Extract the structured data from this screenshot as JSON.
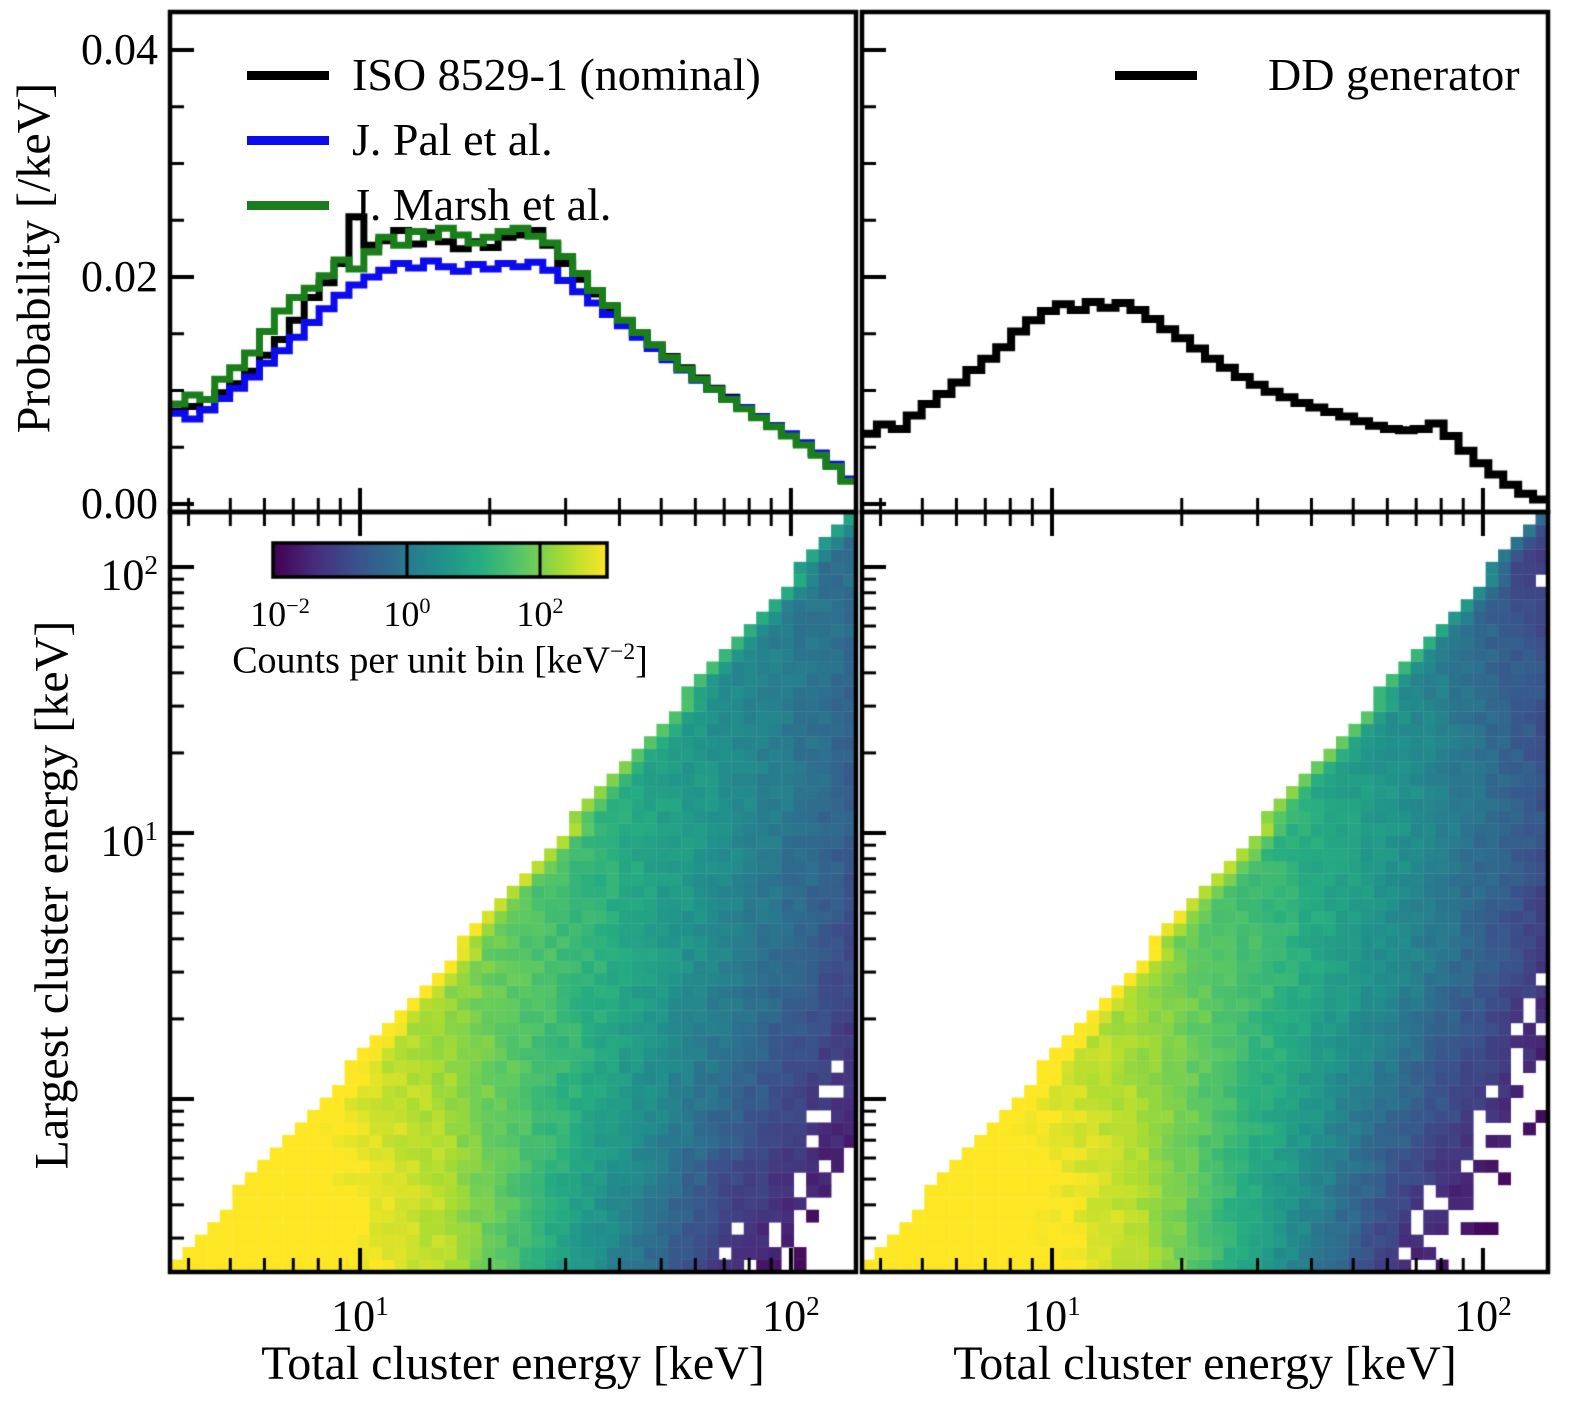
{
  "labels": {
    "prob_axis": "Probability [/keV]",
    "prob_ticks": [
      "0.00",
      "0.02",
      "0.04"
    ],
    "largest_axis": "Largest cluster energy [keV]",
    "total_axis": "Total cluster energy [keV]",
    "energy_xticks": [
      {
        "base": "10",
        "exp": "1"
      },
      {
        "base": "10",
        "exp": "2"
      }
    ],
    "energy_yticks": [
      {
        "base": "10",
        "exp": "1"
      },
      {
        "base": "10",
        "exp": "2"
      }
    ],
    "colorbar_ticks": [
      {
        "base": "10",
        "exp": "−2"
      },
      {
        "base": "10",
        "exp": "0"
      },
      {
        "base": "10",
        "exp": "2"
      }
    ],
    "colorbar_label": {
      "prefix": "Counts per unit bin [keV",
      "exp": "−2",
      "suffix": "]"
    }
  },
  "legend_left": [
    {
      "label": "ISO 8529-1 (nominal)",
      "color": "#000000"
    },
    {
      "label": "J. Pal et al.",
      "color": "#0b0bee"
    },
    {
      "label": "J. Marsh et al.",
      "color": "#1a7f1a"
    }
  ],
  "legend_right": [
    {
      "label": "DD generator",
      "color": "#000000"
    }
  ],
  "chart_data": {
    "histograms": {
      "type": "step-histogram",
      "xscale": "log",
      "xlabel": "Total cluster energy [keV]",
      "ylabel": "Probability [/keV]",
      "xlim": [
        3.62,
        141.6
      ],
      "ylim": [
        -0.0007,
        0.0434
      ],
      "yticks": [
        0,
        0.02,
        0.04
      ],
      "y_minor_step": 0.005,
      "bins": {
        "log10_min": 0.559,
        "log10_max": 2.151,
        "n": 46
      },
      "panels": [
        {
          "id": "top_left",
          "series": [
            {
              "name": "ISO 8529-1 (nominal)",
              "color": "#000000",
              "linewidth": 7,
              "values": [
                0.0082,
                0.0086,
                0.0083,
                0.0098,
                0.0106,
                0.0117,
                0.0131,
                0.0145,
                0.0162,
                0.0182,
                0.0195,
                0.0212,
                0.0253,
                0.0228,
                0.0232,
                0.0241,
                0.0229,
                0.0239,
                0.0231,
                0.0225,
                0.0231,
                0.0226,
                0.0235,
                0.0237,
                0.0241,
                0.0228,
                0.0212,
                0.0198,
                0.0185,
                0.0173,
                0.0161,
                0.015,
                0.014,
                0.013,
                0.012,
                0.0111,
                0.0102,
                0.0094,
                0.0085,
                0.0077,
                0.0069,
                0.0061,
                0.0053,
                0.0044,
                0.0034,
                0.0021
              ]
            },
            {
              "name": "J. Pal et al.",
              "color": "#0b0bee",
              "linewidth": 7,
              "values": [
                0.008,
                0.0075,
                0.0083,
                0.0093,
                0.0102,
                0.0112,
                0.0124,
                0.0135,
                0.0147,
                0.016,
                0.0172,
                0.0184,
                0.0193,
                0.02,
                0.0206,
                0.0212,
                0.0208,
                0.0214,
                0.0209,
                0.0205,
                0.0211,
                0.0207,
                0.0212,
                0.0209,
                0.0213,
                0.0206,
                0.0197,
                0.0187,
                0.0177,
                0.0167,
                0.0157,
                0.0147,
                0.0137,
                0.0127,
                0.0118,
                0.0109,
                0.0101,
                0.0093,
                0.0085,
                0.0077,
                0.0069,
                0.0062,
                0.0054,
                0.0045,
                0.0035,
                0.0022
              ]
            },
            {
              "name": "J. Marsh et al.",
              "color": "#1a7f1a",
              "linewidth": 7,
              "values": [
                0.0088,
                0.0096,
                0.0092,
                0.011,
                0.012,
                0.0133,
                0.0152,
                0.017,
                0.0182,
                0.019,
                0.0201,
                0.0215,
                0.0207,
                0.0222,
                0.0235,
                0.0228,
                0.024,
                0.0235,
                0.0243,
                0.0237,
                0.023,
                0.0235,
                0.024,
                0.0243,
                0.0236,
                0.023,
                0.0218,
                0.0203,
                0.0188,
                0.0175,
                0.0162,
                0.0151,
                0.014,
                0.0129,
                0.0119,
                0.011,
                0.0101,
                0.0092,
                0.0084,
                0.0076,
                0.0068,
                0.006,
                0.0052,
                0.0043,
                0.0033,
                0.002
              ]
            }
          ]
        },
        {
          "id": "top_right",
          "series": [
            {
              "name": "DD generator",
              "color": "#000000",
              "linewidth": 8,
              "values": [
                0.0062,
                0.007,
                0.0066,
                0.0078,
                0.0088,
                0.0097,
                0.0107,
                0.0118,
                0.0128,
                0.0138,
                0.0152,
                0.0162,
                0.017,
                0.0176,
                0.0171,
                0.0178,
                0.0173,
                0.0177,
                0.0171,
                0.0163,
                0.0154,
                0.0146,
                0.0137,
                0.0128,
                0.012,
                0.0112,
                0.0105,
                0.0099,
                0.0094,
                0.0089,
                0.0085,
                0.0081,
                0.0077,
                0.0073,
                0.0069,
                0.0066,
                0.0065,
                0.0066,
                0.0071,
                0.006,
                0.0047,
                0.0036,
                0.0026,
                0.0017,
                0.0009,
                0.0004
              ]
            }
          ]
        }
      ]
    },
    "heatmaps": {
      "type": "heatmap",
      "xscale": "log",
      "yscale": "log",
      "xlabel": "Total cluster energy [keV]",
      "ylabel": "Largest cluster energy [keV]",
      "value_label": "Counts per unit bin [keV^-2]",
      "xlim": [
        3.62,
        141.6
      ],
      "ylim": [
        0.224,
        161
      ],
      "ncols": 55,
      "nrows": 61,
      "color_domain_log10": [
        -2,
        3
      ],
      "diag_edge_boost": 0.9,
      "second_cell_boost": 0.3,
      "note": "triangular occupancy: cells only on/below the corner-to-corner diagonal; log10(counts) sampled on a 6x6 grid over (a,b) = normalized (x,y) position, bilinearly interpolated",
      "grid_axes": [
        0,
        0.2,
        0.4,
        0.6,
        0.8,
        1.0
      ],
      "panels": [
        {
          "id": "bottom_left",
          "log10_counts_grid": [
            [
              3.65,
              3.35,
              2.5,
              0.6,
              -1.3,
              -2.3
            ],
            [
              3.3,
              3.15,
              2.35,
              1.05,
              -0.35,
              -1.55
            ],
            [
              2.9,
              2.7,
              2.2,
              1.35,
              0.25,
              -0.95
            ],
            [
              2.2,
              2.1,
              1.8,
              1.35,
              0.55,
              -0.55
            ],
            [
              1.6,
              1.5,
              1.3,
              1.0,
              0.45,
              -0.35
            ],
            [
              0.9,
              0.85,
              0.7,
              0.5,
              0.2,
              -0.15
            ]
          ]
        },
        {
          "id": "bottom_right",
          "log10_counts_grid": [
            [
              3.7,
              3.4,
              2.55,
              0.55,
              -1.55,
              -2.7
            ],
            [
              3.35,
              3.2,
              2.4,
              1.0,
              -0.5,
              -1.9
            ],
            [
              2.95,
              2.75,
              2.25,
              1.35,
              0.2,
              -1.2
            ],
            [
              2.25,
              2.15,
              1.85,
              1.35,
              0.5,
              -0.75
            ],
            [
              1.65,
              1.55,
              1.35,
              1.0,
              0.35,
              -0.8
            ],
            [
              0.95,
              0.9,
              0.75,
              0.5,
              0.0,
              -1.3
            ]
          ]
        }
      ]
    },
    "colorbar": {
      "orientation": "horizontal",
      "domain": [
        "1e-2",
        "1e3"
      ],
      "tick_values": [
        "1e-2",
        "1e0",
        "1e2"
      ],
      "viridis_stops": [
        [
          0,
          "#440154"
        ],
        [
          0.125,
          "#472d7b"
        ],
        [
          0.25,
          "#3b528b"
        ],
        [
          0.375,
          "#2c728e"
        ],
        [
          0.5,
          "#21918c"
        ],
        [
          0.625,
          "#27ad81"
        ],
        [
          0.75,
          "#5cc863"
        ],
        [
          0.875,
          "#aadc32"
        ],
        [
          1,
          "#fde725"
        ]
      ]
    }
  }
}
